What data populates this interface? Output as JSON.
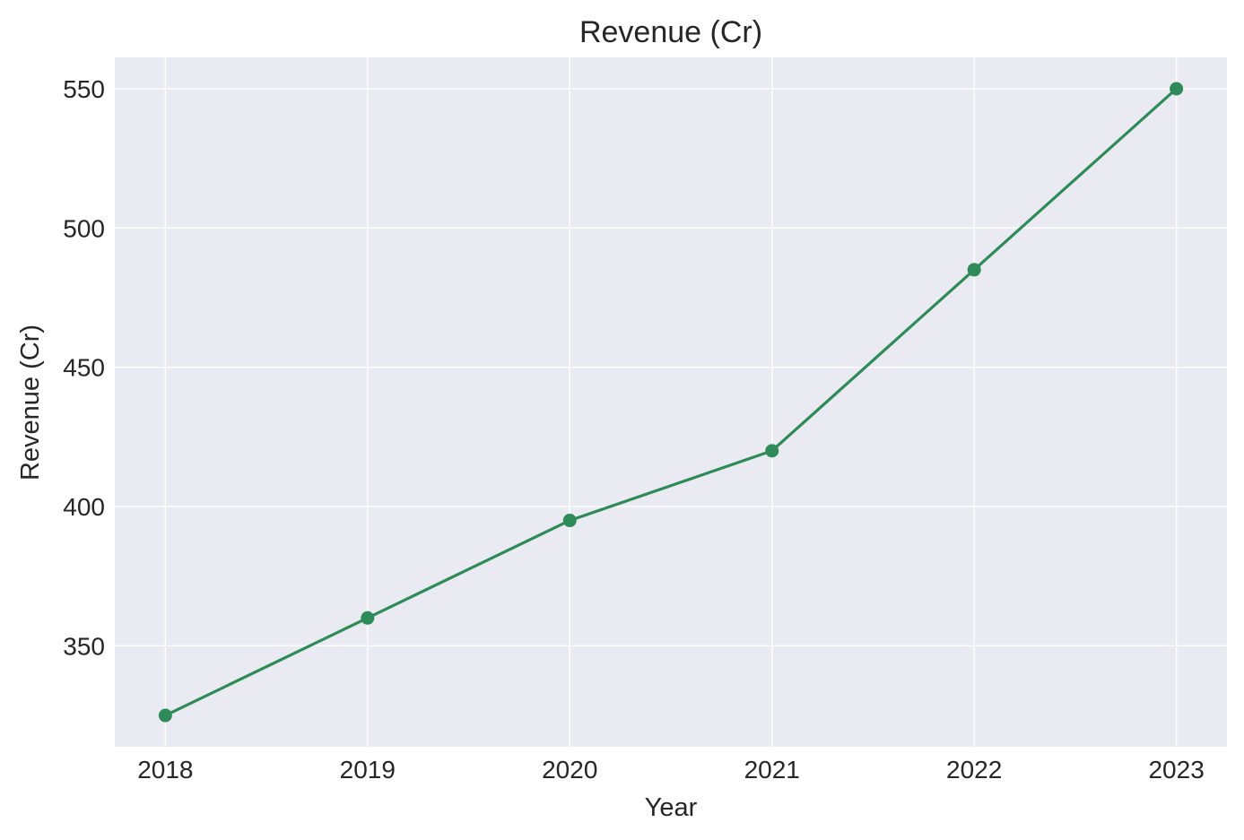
{
  "chart_data": {
    "type": "line",
    "title": "Revenue (Cr)",
    "xlabel": "Year",
    "ylabel": "Revenue (Cr)",
    "categories": [
      "2018",
      "2019",
      "2020",
      "2021",
      "2022",
      "2023"
    ],
    "x": [
      2018,
      2019,
      2020,
      2021,
      2022,
      2023
    ],
    "series": [
      {
        "name": "Revenue (Cr)",
        "values": [
          325,
          360,
          395,
          420,
          485,
          550
        ],
        "color": "#2e8b57",
        "marker": "circle"
      }
    ],
    "yticks": [
      350,
      400,
      450,
      500,
      550
    ],
    "ylim": [
      313.75,
      561.25
    ],
    "xlim": [
      2017.75,
      2023.25
    ],
    "grid": true,
    "legend": null,
    "background": "#eaeaf2"
  }
}
